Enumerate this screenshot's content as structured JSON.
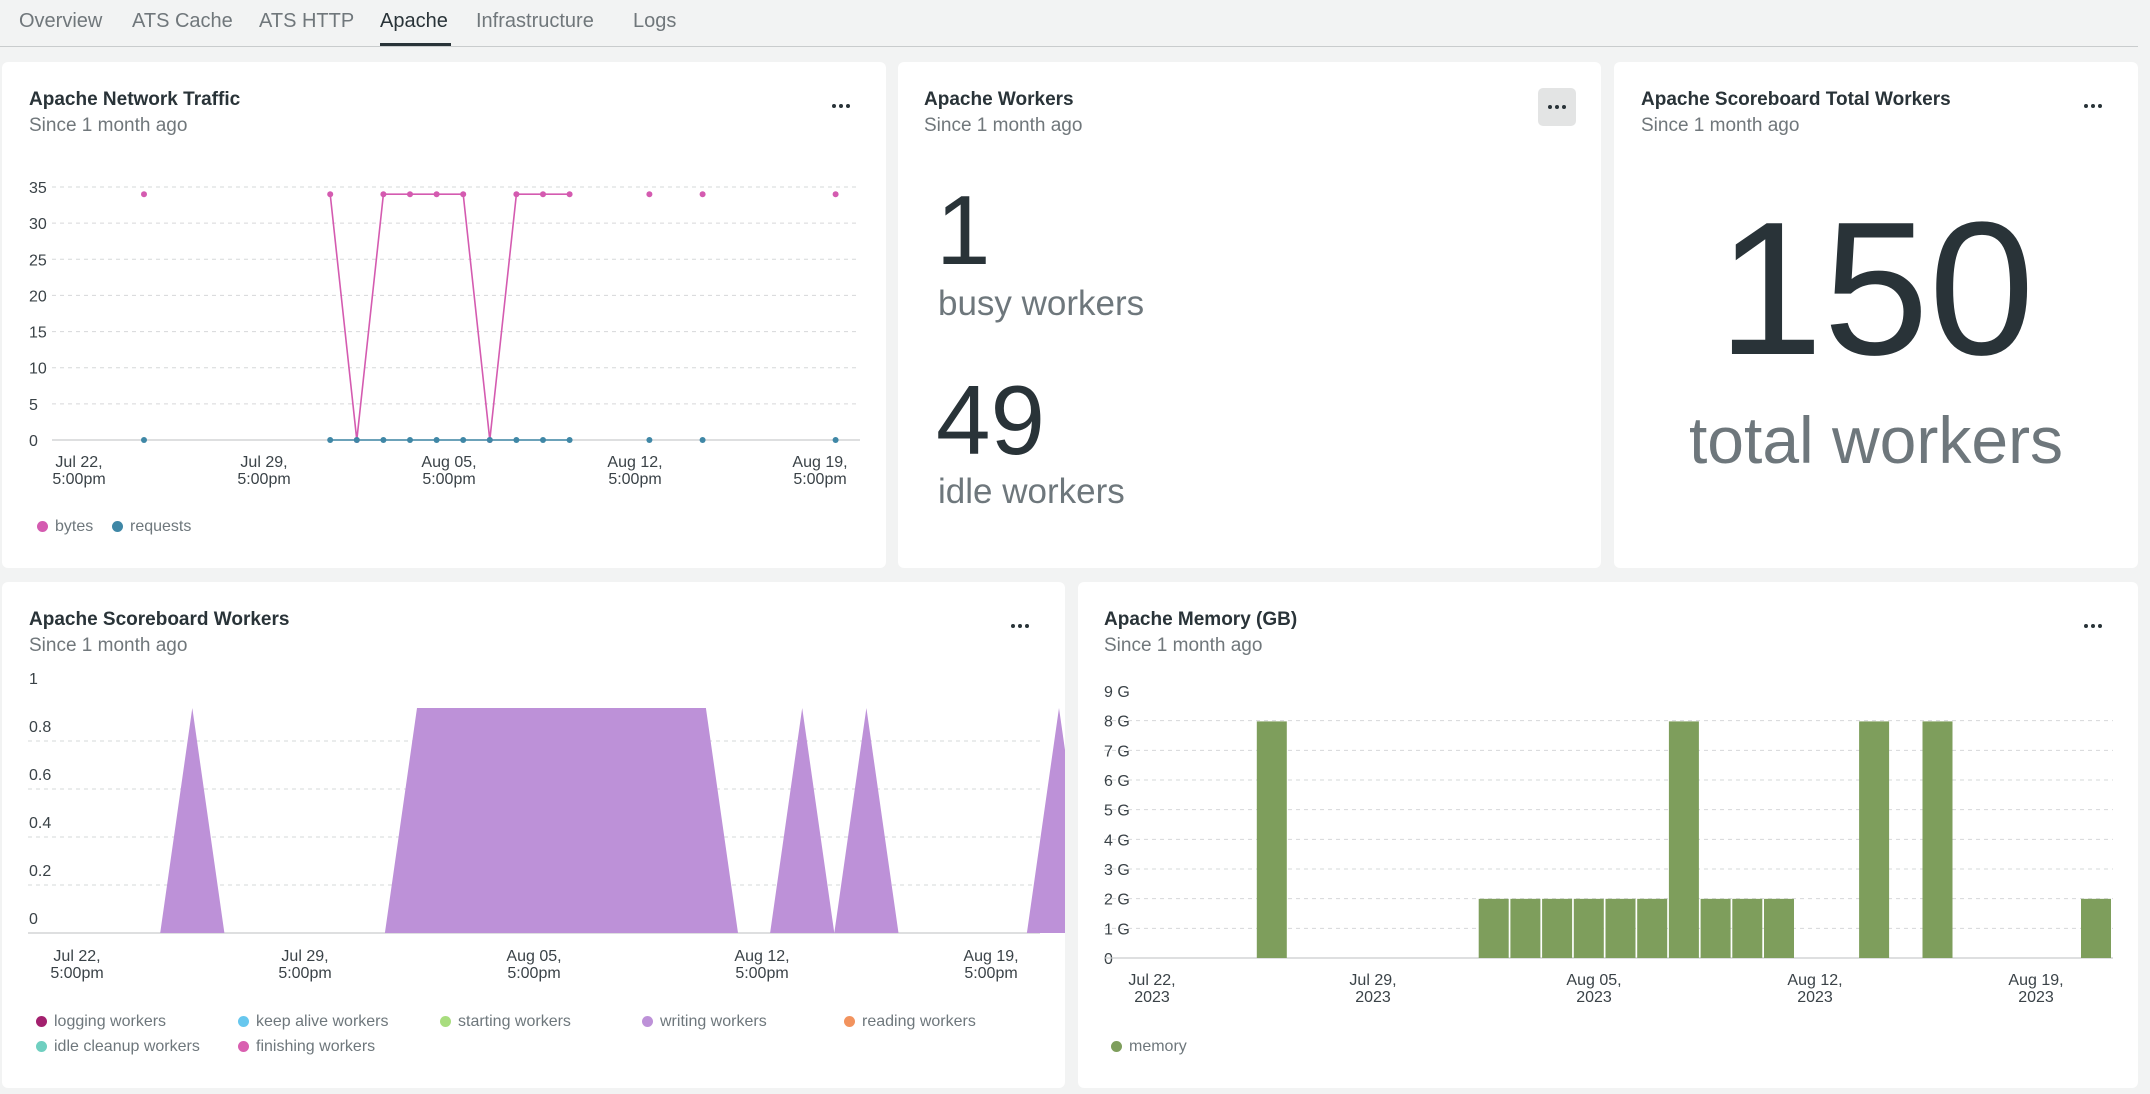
{
  "tabs": [
    {
      "label": "Overview"
    },
    {
      "label": "ATS Cache"
    },
    {
      "label": "ATS HTTP"
    },
    {
      "label": "Apache"
    },
    {
      "label": "Infrastructure"
    },
    {
      "label": "Logs"
    }
  ],
  "active_tab": "Apache",
  "cards": {
    "network": {
      "title": "Apache Network Traffic",
      "subtitle": "Since 1 month ago"
    },
    "workers": {
      "title": "Apache Workers",
      "subtitle": "Since 1 month ago",
      "busy_value": "1",
      "busy_label": "busy workers",
      "idle_value": "49",
      "idle_label": "idle workers"
    },
    "total": {
      "title": "Apache Scoreboard Total Workers",
      "subtitle": "Since 1 month ago",
      "value": "150",
      "label": "total workers"
    },
    "scoreboard": {
      "title": "Apache Scoreboard Workers",
      "subtitle": "Since 1 month ago"
    },
    "memory": {
      "title": "Apache Memory (GB)",
      "subtitle": "Since 1 month ago"
    }
  },
  "chart_data": [
    {
      "id": "network",
      "type": "line",
      "x_tick_labels": [
        [
          "Jul 22,",
          "5:00pm"
        ],
        [
          "Jul 29,",
          "5:00pm"
        ],
        [
          "Aug 05,",
          "5:00pm"
        ],
        [
          "Aug 12,",
          "5:00pm"
        ],
        [
          "Aug 19,",
          "5:00pm"
        ]
      ],
      "y_ticks": [
        "35",
        "30",
        "25",
        "20",
        "15",
        "10",
        "5",
        "0"
      ],
      "ylim": [
        0,
        35
      ],
      "grid": true,
      "legend_position": "bottom",
      "series": [
        {
          "name": "bytes",
          "color": "#d45bb0",
          "points": [
            [
              0,
              34
            ],
            [
              7,
              34
            ],
            [
              8,
              0
            ],
            [
              9,
              34
            ],
            [
              10,
              34
            ],
            [
              11,
              34
            ],
            [
              12,
              34
            ],
            [
              13,
              0
            ],
            [
              14,
              34
            ],
            [
              15,
              34
            ],
            [
              16,
              34
            ],
            [
              19,
              34
            ],
            [
              21,
              34
            ],
            [
              26,
              34
            ]
          ],
          "connected": [
            [
              7,
              8,
              9,
              10,
              11,
              12,
              13,
              14,
              15,
              16
            ]
          ]
        },
        {
          "name": "requests",
          "color": "#3f87a6",
          "points": [
            [
              0,
              0
            ],
            [
              7,
              0
            ],
            [
              8,
              0
            ],
            [
              9,
              0
            ],
            [
              10,
              0
            ],
            [
              11,
              0
            ],
            [
              12,
              0
            ],
            [
              13,
              0
            ],
            [
              14,
              0
            ],
            [
              15,
              0
            ],
            [
              16,
              0
            ],
            [
              19,
              0
            ],
            [
              21,
              0
            ],
            [
              26,
              0
            ]
          ],
          "connected": [
            [
              7,
              8,
              9,
              10,
              11,
              12,
              13,
              14,
              15,
              16
            ]
          ]
        }
      ]
    },
    {
      "id": "scoreboard",
      "type": "area",
      "x_tick_labels": [
        [
          "Jul 22,",
          "5:00pm"
        ],
        [
          "Jul 29,",
          "5:00pm"
        ],
        [
          "Aug 05,",
          "5:00pm"
        ],
        [
          "Aug 12,",
          "5:00pm"
        ],
        [
          "Aug 19,",
          "5:00pm"
        ]
      ],
      "y_ticks": [
        "1",
        "0.8",
        "0.6",
        "0.4",
        "0.2",
        "0"
      ],
      "ylim": [
        0,
        1
      ],
      "grid": true,
      "legend_position": "bottom",
      "series": [
        {
          "name": "logging workers",
          "color": "#a3206e",
          "values": []
        },
        {
          "name": "keep alive workers",
          "color": "#67c7ee",
          "values": []
        },
        {
          "name": "starting workers",
          "color": "#a8dd7e",
          "values": []
        },
        {
          "name": "writing workers",
          "color": "#bd91d8",
          "points": [
            [
              0,
              0
            ],
            [
              2,
              0
            ],
            [
              3,
              1
            ],
            [
              4,
              0
            ],
            [
              9,
              0
            ],
            [
              10,
              1
            ],
            [
              19,
              1
            ],
            [
              20,
              0
            ],
            [
              21,
              0
            ],
            [
              22,
              1
            ],
            [
              23,
              0
            ],
            [
              24,
              1
            ],
            [
              25,
              0
            ],
            [
              29,
              0
            ],
            [
              30,
              1
            ],
            [
              31,
              0
            ]
          ]
        },
        {
          "name": "reading workers",
          "color": "#f2935e",
          "values": []
        },
        {
          "name": "idle cleanup workers",
          "color": "#6fcfc0",
          "values": []
        },
        {
          "name": "finishing workers",
          "color": "#d95fb0",
          "values": []
        }
      ]
    },
    {
      "id": "memory",
      "type": "bar",
      "x_tick_labels": [
        [
          "Jul 22,",
          "2023"
        ],
        [
          "Jul 29,",
          "2023"
        ],
        [
          "Aug 05,",
          "2023"
        ],
        [
          "Aug 12,",
          "2023"
        ],
        [
          "Aug 19,",
          "2023"
        ]
      ],
      "y_ticks": [
        "9 G",
        "8 G",
        "7 G",
        "6 G",
        "5 G",
        "4 G",
        "3 G",
        "2 G",
        "1 G",
        "0"
      ],
      "ylim": [
        0,
        9
      ],
      "grid": true,
      "legend_position": "bottom",
      "series": [
        {
          "name": "memory",
          "color": "#7e9e5c",
          "bars": [
            [
              4,
              8.4
            ],
            [
              11,
              2.1
            ],
            [
              12,
              2.1
            ],
            [
              13,
              2.1
            ],
            [
              14,
              2.1
            ],
            [
              15,
              2.1
            ],
            [
              16,
              2.1
            ],
            [
              17,
              8.4
            ],
            [
              18,
              2.1
            ],
            [
              19,
              2.1
            ],
            [
              20,
              2.1
            ],
            [
              23,
              8.4
            ],
            [
              25,
              8.4
            ],
            [
              30,
              2.1
            ]
          ]
        }
      ]
    }
  ]
}
